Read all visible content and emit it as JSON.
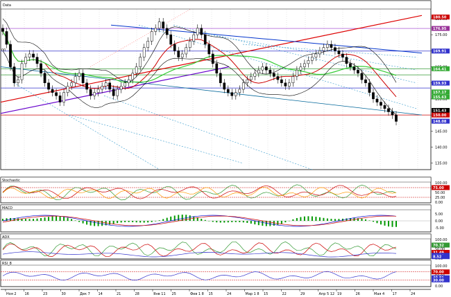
{
  "chart_data": [
    {
      "panel": "price",
      "type": "candlestick",
      "title": "Data",
      "corner_label": "00",
      "ylabel_ticks": [
        "180.00",
        "175.00",
        "170.00",
        "165.00",
        "160.00",
        "155.00",
        "150.00",
        "145.00",
        "140.00",
        "135.00"
      ],
      "price_labels": [
        {
          "text": "180.50",
          "color": "#cc0000"
        },
        {
          "text": "176.95",
          "color": "#993399"
        },
        {
          "text": "169.91",
          "color": "#3333cc"
        },
        {
          "text": "164.41",
          "color": "#33aa33"
        },
        {
          "text": "159.93",
          "color": "#3333cc"
        },
        {
          "text": "157.17",
          "color": "#33aa33"
        },
        {
          "text": "155.63",
          "color": "#33aa33"
        },
        {
          "text": "151.43",
          "color": "#000000"
        },
        {
          "text": "150.00",
          "color": "#cc0000"
        },
        {
          "text": "148.08",
          "color": "#3333cc"
        }
      ],
      "closes": [
        176,
        172,
        165,
        160,
        161,
        166,
        168,
        169,
        168,
        166,
        163,
        160,
        158,
        157,
        156,
        154,
        157,
        159,
        160,
        162,
        163,
        160,
        158,
        156,
        157,
        158,
        159,
        160,
        158,
        156,
        158,
        159,
        160,
        161,
        163,
        165,
        168,
        171,
        173,
        176,
        177,
        179,
        177,
        175,
        172,
        170,
        168,
        169,
        171,
        173,
        175,
        177,
        175,
        172,
        169,
        166,
        163,
        160,
        158,
        157,
        156,
        157,
        158,
        160,
        161,
        162,
        163,
        164,
        165,
        164,
        163,
        162,
        161,
        160,
        159,
        160,
        162,
        164,
        165,
        166,
        167,
        168,
        169,
        170,
        171,
        172,
        171,
        170,
        169,
        168,
        166,
        165,
        164,
        163,
        161,
        160,
        157,
        155,
        154,
        153,
        152,
        151,
        150,
        148
      ]
    },
    {
      "panel": "stochastic",
      "type": "line",
      "title": "Stochastic",
      "ylabel_ticks": [
        "100.00",
        "75.00",
        "50.00",
        "25.00",
        "0.00"
      ],
      "level_labels": [
        {
          "text": "75.00",
          "color": "#cc0000"
        }
      ]
    },
    {
      "panel": "macd",
      "type": "bar+line",
      "title": "MACD",
      "ylabel_ticks": [
        "5.00",
        "0.00",
        "-5.00"
      ]
    },
    {
      "panel": "adx",
      "type": "line",
      "title": "ADX",
      "ylabel_ticks": [
        "100.00",
        "50.00",
        "0.00"
      ],
      "level_labels": [
        {
          "text": "70.32",
          "color": "#339933"
        },
        {
          "text": "31.49",
          "color": "#cc0000"
        },
        {
          "text": "15.60",
          "color": "#3333cc"
        },
        {
          "text": "8.52",
          "color": "#3333cc"
        }
      ]
    },
    {
      "panel": "rsi",
      "type": "line",
      "title": "RSI_8",
      "ylabel_ticks": [
        "100.00",
        "50.00",
        "0.00"
      ],
      "level_labels": [
        {
          "text": "70.00",
          "color": "#cc0000"
        },
        {
          "text": "40.81",
          "color": "#3333cc"
        },
        {
          "text": "30.00",
          "color": "#3333cc"
        }
      ]
    }
  ],
  "x_axis": {
    "tick_labels": [
      "Ноя 2",
      "16",
      "23",
      "30",
      "Дек 7",
      "14",
      "21",
      "28",
      "Янв 11",
      "25",
      "Фев 1 8",
      "15",
      "24",
      "Мар 1 8",
      "15",
      "22",
      "29",
      "Апр 5 12",
      "19",
      "26",
      "Мая 4",
      "17",
      "24"
    ]
  },
  "colors": {
    "up_candle": "#ffffff",
    "down_candle": "#000000",
    "ma_short": "#cc0000",
    "ma_long": "#33cc33",
    "bollinger": "#000000",
    "trend_red": "#dd0000",
    "trend_purple": "#6600cc",
    "trend_blue": "#0033cc",
    "hline_red": "#cc0000",
    "hline_green": "#339933",
    "hline_purple": "#9933cc"
  }
}
